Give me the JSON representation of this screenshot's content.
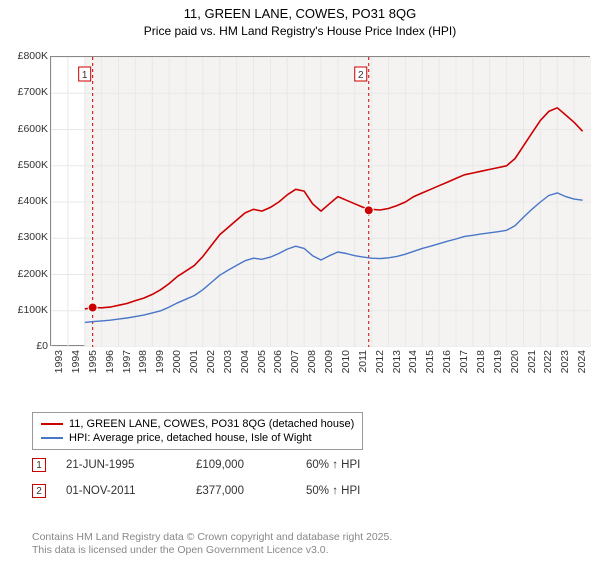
{
  "title": "11, GREEN LANE, COWES, PO31 8QG",
  "subtitle": "Price paid vs. HM Land Registry's House Price Index (HPI)",
  "chart": {
    "type": "line",
    "background_color": "#ffffff",
    "shade_color": "#f4f3f2",
    "grid_color": "#e8e8e8",
    "axis_color": "#888888",
    "ylim": [
      0,
      800000
    ],
    "ytick_step": 100000,
    "y_ticks": [
      "£0",
      "£100K",
      "£200K",
      "£300K",
      "£400K",
      "£500K",
      "£600K",
      "£700K",
      "£800K"
    ],
    "x_years": [
      "1993",
      "1994",
      "1995",
      "1996",
      "1997",
      "1998",
      "1999",
      "2000",
      "2001",
      "2002",
      "2003",
      "2004",
      "2005",
      "2006",
      "2007",
      "2008",
      "2009",
      "2010",
      "2011",
      "2012",
      "2013",
      "2014",
      "2015",
      "2016",
      "2017",
      "2018",
      "2019",
      "2020",
      "2021",
      "2022",
      "2023",
      "2024"
    ],
    "x_range": [
      1993,
      2025
    ],
    "shade_from_year": 1995,
    "shade_to_year": 2025,
    "series": [
      {
        "name": "property",
        "label": "11, GREEN LANE, COWES, PO31 8QG (detached house)",
        "color": "#cc0000",
        "line_width": 1.6,
        "data": [
          [
            1995.0,
            105000
          ],
          [
            1995.5,
            109000
          ],
          [
            1996.0,
            108000
          ],
          [
            1996.5,
            110000
          ],
          [
            1997.0,
            115000
          ],
          [
            1997.5,
            120000
          ],
          [
            1998.0,
            128000
          ],
          [
            1998.5,
            135000
          ],
          [
            1999.0,
            145000
          ],
          [
            1999.5,
            158000
          ],
          [
            2000.0,
            175000
          ],
          [
            2000.5,
            195000
          ],
          [
            2001.0,
            210000
          ],
          [
            2001.5,
            225000
          ],
          [
            2002.0,
            250000
          ],
          [
            2002.5,
            280000
          ],
          [
            2003.0,
            310000
          ],
          [
            2003.5,
            330000
          ],
          [
            2004.0,
            350000
          ],
          [
            2004.5,
            370000
          ],
          [
            2005.0,
            380000
          ],
          [
            2005.5,
            375000
          ],
          [
            2006.0,
            385000
          ],
          [
            2006.5,
            400000
          ],
          [
            2007.0,
            420000
          ],
          [
            2007.5,
            435000
          ],
          [
            2008.0,
            430000
          ],
          [
            2008.5,
            395000
          ],
          [
            2009.0,
            375000
          ],
          [
            2009.5,
            395000
          ],
          [
            2010.0,
            415000
          ],
          [
            2010.5,
            405000
          ],
          [
            2011.0,
            395000
          ],
          [
            2011.5,
            385000
          ],
          [
            2012.0,
            380000
          ],
          [
            2012.5,
            378000
          ],
          [
            2013.0,
            382000
          ],
          [
            2013.5,
            390000
          ],
          [
            2014.0,
            400000
          ],
          [
            2014.5,
            415000
          ],
          [
            2015.0,
            425000
          ],
          [
            2015.5,
            435000
          ],
          [
            2016.0,
            445000
          ],
          [
            2016.5,
            455000
          ],
          [
            2017.0,
            465000
          ],
          [
            2017.5,
            475000
          ],
          [
            2018.0,
            480000
          ],
          [
            2018.5,
            485000
          ],
          [
            2019.0,
            490000
          ],
          [
            2019.5,
            495000
          ],
          [
            2020.0,
            500000
          ],
          [
            2020.5,
            520000
          ],
          [
            2021.0,
            555000
          ],
          [
            2021.5,
            590000
          ],
          [
            2022.0,
            625000
          ],
          [
            2022.5,
            650000
          ],
          [
            2023.0,
            660000
          ],
          [
            2023.5,
            640000
          ],
          [
            2024.0,
            620000
          ],
          [
            2024.5,
            595000
          ]
        ]
      },
      {
        "name": "hpi",
        "label": "HPI: Average price, detached house, Isle of Wight",
        "color": "#4a76c7",
        "line_width": 1.4,
        "data": [
          [
            1995.0,
            68000
          ],
          [
            1995.5,
            70000
          ],
          [
            1996.0,
            72000
          ],
          [
            1996.5,
            74000
          ],
          [
            1997.0,
            77000
          ],
          [
            1997.5,
            80000
          ],
          [
            1998.0,
            84000
          ],
          [
            1998.5,
            88000
          ],
          [
            1999.0,
            94000
          ],
          [
            1999.5,
            100000
          ],
          [
            2000.0,
            110000
          ],
          [
            2000.5,
            122000
          ],
          [
            2001.0,
            132000
          ],
          [
            2001.5,
            142000
          ],
          [
            2002.0,
            158000
          ],
          [
            2002.5,
            178000
          ],
          [
            2003.0,
            198000
          ],
          [
            2003.5,
            212000
          ],
          [
            2004.0,
            225000
          ],
          [
            2004.5,
            238000
          ],
          [
            2005.0,
            245000
          ],
          [
            2005.5,
            242000
          ],
          [
            2006.0,
            248000
          ],
          [
            2006.5,
            258000
          ],
          [
            2007.0,
            270000
          ],
          [
            2007.5,
            278000
          ],
          [
            2008.0,
            272000
          ],
          [
            2008.5,
            252000
          ],
          [
            2009.0,
            240000
          ],
          [
            2009.5,
            252000
          ],
          [
            2010.0,
            262000
          ],
          [
            2010.5,
            258000
          ],
          [
            2011.0,
            252000
          ],
          [
            2011.5,
            248000
          ],
          [
            2012.0,
            245000
          ],
          [
            2012.5,
            244000
          ],
          [
            2013.0,
            246000
          ],
          [
            2013.5,
            250000
          ],
          [
            2014.0,
            256000
          ],
          [
            2014.5,
            264000
          ],
          [
            2015.0,
            272000
          ],
          [
            2015.5,
            278000
          ],
          [
            2016.0,
            285000
          ],
          [
            2016.5,
            292000
          ],
          [
            2017.0,
            298000
          ],
          [
            2017.5,
            305000
          ],
          [
            2018.0,
            308000
          ],
          [
            2018.5,
            312000
          ],
          [
            2019.0,
            315000
          ],
          [
            2019.5,
            318000
          ],
          [
            2020.0,
            322000
          ],
          [
            2020.5,
            335000
          ],
          [
            2021.0,
            358000
          ],
          [
            2021.5,
            380000
          ],
          [
            2022.0,
            400000
          ],
          [
            2022.5,
            418000
          ],
          [
            2023.0,
            425000
          ],
          [
            2023.5,
            415000
          ],
          [
            2024.0,
            408000
          ],
          [
            2024.5,
            405000
          ]
        ]
      }
    ],
    "sale_markers": [
      {
        "n": "1",
        "year": 1995.47,
        "color": "#cc0000",
        "point_year": 1995.47,
        "point_value": 109000
      },
      {
        "n": "2",
        "year": 2011.83,
        "color": "#cc0000",
        "point_year": 2011.83,
        "point_value": 377000
      }
    ]
  },
  "legend": [
    {
      "color": "#cc0000",
      "label": "11, GREEN LANE, COWES, PO31 8QG (detached house)"
    },
    {
      "color": "#4a76c7",
      "label": "HPI: Average price, detached house, Isle of Wight"
    }
  ],
  "sales": [
    {
      "n": "1",
      "date": "21-JUN-1995",
      "price": "£109,000",
      "delta": "60% ↑ HPI",
      "marker_color": "#cc0000"
    },
    {
      "n": "2",
      "date": "01-NOV-2011",
      "price": "£377,000",
      "delta": "50% ↑ HPI",
      "marker_color": "#cc0000"
    }
  ],
  "footer_line1": "Contains HM Land Registry data © Crown copyright and database right 2025.",
  "footer_line2": "This data is licensed under the Open Government Licence v3.0."
}
